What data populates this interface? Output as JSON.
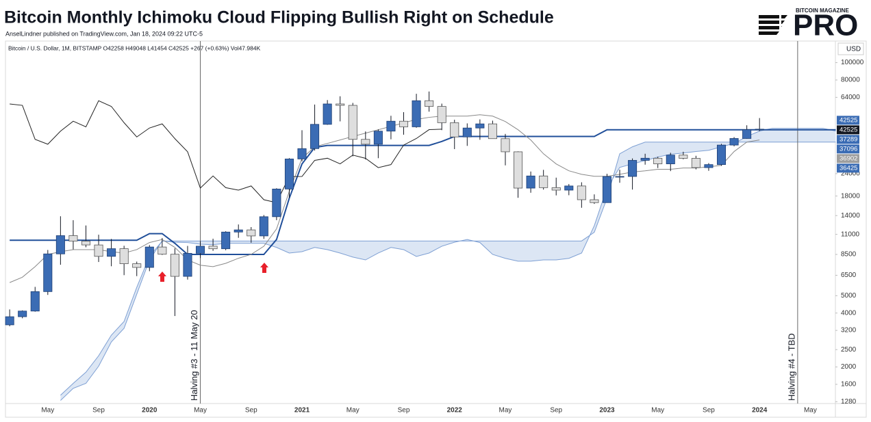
{
  "chart_data": {
    "type": "candlestick",
    "title": "Bitcoin Monthly Ichimoku Cloud Flipping Bullish Right on Schedule",
    "subtitle": "AnselLindner published on TradingView.com, Jan 18, 2024 09:22 UTC-5",
    "symbol_line": "Bitcoin / U.S. Dollar, 1M, BITSTAMP  O42258 H49048 L41454 C42525 +267 (+0.63%) Vol47.984K",
    "currency": "USD",
    "brand": {
      "top": "BITCOIN MAGAZINE",
      "main": "PRO"
    },
    "categories": [
      null,
      null,
      null,
      "May",
      null,
      null,
      null,
      "Sep",
      null,
      null,
      null,
      "2020",
      null,
      null,
      null,
      "May",
      null,
      null,
      null,
      "Sep",
      null,
      null,
      null,
      "2021",
      null,
      null,
      null,
      "May",
      null,
      null,
      null,
      "Sep",
      null,
      null,
      null,
      "2022",
      null,
      null,
      null,
      "May",
      null,
      null,
      null,
      "Sep",
      null,
      null,
      null,
      "2023",
      null,
      null,
      null,
      "May",
      null,
      null,
      null,
      "Sep",
      null,
      null,
      null,
      "2024",
      null,
      null,
      null,
      "May",
      null,
      null
    ],
    "open": [
      3437,
      3816,
      4103,
      5270,
      8555,
      10820,
      10085,
      9600,
      8290,
      9150,
      7540,
      7190,
      9350,
      8520,
      6410,
      8620,
      9450,
      9140,
      11330,
      11650,
      10780,
      13800,
      19700,
      28990,
      33110,
      45240,
      58800,
      57750,
      37300,
      35040,
      41460,
      47100,
      43820,
      61300,
      56950,
      46210,
      38470,
      43160,
      45510,
      37630,
      31790,
      19930,
      23300,
      20050,
      19420,
      20490,
      17170,
      16540,
      23130,
      23150,
      28470,
      29270,
      27220,
      30470,
      29230,
      25940,
      26970,
      34660,
      37720,
      42258,
      null,
      null,
      null,
      null,
      null,
      null
    ],
    "high": [
      4190,
      4140,
      5600,
      9000,
      13880,
      13200,
      12330,
      10950,
      10370,
      9500,
      7750,
      9580,
      10500,
      9190,
      9480,
      10070,
      10400,
      11450,
      12490,
      12080,
      14100,
      19900,
      29300,
      41950,
      58350,
      61800,
      64900,
      59600,
      41300,
      42400,
      50500,
      52920,
      67000,
      69000,
      59050,
      47990,
      45800,
      48200,
      47440,
      40000,
      31980,
      24670,
      25200,
      22800,
      20990,
      21480,
      18390,
      23960,
      25250,
      29190,
      31000,
      29830,
      31390,
      31800,
      30200,
      27480,
      35200,
      38400,
      44700,
      49048,
      null,
      null,
      null,
      null,
      null,
      null
    ],
    "low": [
      3375,
      3740,
      4070,
      5050,
      7440,
      9070,
      9320,
      7710,
      7300,
      6510,
      6430,
      6850,
      8440,
      3850,
      6150,
      8110,
      8900,
      8970,
      10520,
      9880,
      10380,
      13200,
      17600,
      28130,
      32300,
      44950,
      47000,
      30000,
      28800,
      29280,
      37330,
      39600,
      43300,
      53250,
      42000,
      32900,
      34300,
      37100,
      37590,
      26700,
      17600,
      18780,
      19550,
      18150,
      18190,
      15480,
      16270,
      16500,
      21350,
      19560,
      26940,
      25800,
      24800,
      28860,
      25350,
      24900,
      26550,
      34100,
      37600,
      41454,
      null,
      null,
      null,
      null,
      null,
      null
    ],
    "close": [
      3816,
      4103,
      5270,
      8555,
      10820,
      10085,
      9600,
      8290,
      9150,
      7540,
      7190,
      9350,
      8520,
      6410,
      8620,
      9450,
      9140,
      11330,
      11650,
      10780,
      13800,
      19700,
      28990,
      33110,
      45240,
      58800,
      57750,
      37300,
      35040,
      41460,
      47100,
      43820,
      61300,
      56950,
      46210,
      38470,
      43160,
      45510,
      37630,
      31790,
      19930,
      23300,
      20050,
      19420,
      20490,
      17170,
      16540,
      23130,
      23150,
      28470,
      29270,
      27220,
      30470,
      29230,
      25940,
      26970,
      34660,
      37720,
      42258,
      42525,
      null,
      null,
      null,
      null,
      null,
      null
    ],
    "up_color": "#3b6cb4",
    "down_color": "#dedede",
    "cloud": {
      "color": "#dce6f4",
      "line_color": "#7d9fd3",
      "span_a": [
        null,
        null,
        null,
        null,
        1390,
        1620,
        1870,
        2310,
        3010,
        3590,
        5570,
        8280,
        10100,
        9940,
        9900,
        9700,
        9630,
        9800,
        9800,
        9800,
        9800,
        9300,
        8650,
        8800,
        9300,
        9040,
        8650,
        8210,
        7920,
        8650,
        9300,
        9040,
        8280,
        8650,
        9440,
        9940,
        10300,
        9900,
        8500,
        8080,
        7790,
        7790,
        7920,
        7920,
        8080,
        8650,
        12300,
        20000,
        26000,
        27200,
        28400,
        29700,
        30800,
        31300,
        31900,
        32400,
        33900,
        35400,
        38700,
        41500,
        43000,
        43000,
        43000,
        43000,
        43000,
        41500
      ],
      "span_b": [
        null,
        null,
        null,
        null,
        1300,
        1520,
        1620,
        2020,
        2760,
        3290,
        5100,
        7920,
        10100,
        10100,
        10100,
        10100,
        10100,
        10100,
        10100,
        10100,
        10100,
        10100,
        10100,
        10100,
        10100,
        10100,
        10100,
        10100,
        10100,
        10100,
        10100,
        10100,
        10100,
        10100,
        10100,
        10100,
        10100,
        10100,
        10100,
        10100,
        10100,
        10100,
        10100,
        10100,
        10100,
        10100,
        11300,
        17500,
        31000,
        33900,
        36000,
        36000,
        36000,
        36000,
        36000,
        36000,
        36000,
        36000,
        36000,
        36000,
        36000,
        36000,
        36000,
        36000,
        36000,
        36000
      ]
    },
    "lines": [
      {
        "color": "#1f4e99",
        "width": 2,
        "values": [
          10200,
          10200,
          10200,
          10200,
          10200,
          10200,
          10200,
          10200,
          10200,
          10200,
          10200,
          11100,
          11100,
          9800,
          8500,
          8500,
          8500,
          8500,
          8500,
          8500,
          8500,
          10300,
          17500,
          27200,
          33600,
          34500,
          34500,
          34500,
          34500,
          34500,
          34500,
          34500,
          34500,
          34500,
          36300,
          38700,
          38700,
          38700,
          38700,
          38700,
          38700,
          38700,
          38700,
          38700,
          38700,
          38700,
          38700,
          42200,
          42200,
          42200,
          42200,
          42200,
          42200,
          42200,
          42200,
          42200,
          42200,
          42200,
          42200,
          42200,
          42200,
          42200,
          42200,
          42200,
          42200,
          42200
        ]
      },
      {
        "color": "#888888",
        "width": 1,
        "values": [
          5920,
          6340,
          7260,
          8500,
          8800,
          9040,
          9040,
          9040,
          8800,
          8650,
          9040,
          9900,
          10300,
          9300,
          7920,
          7400,
          7260,
          7580,
          8090,
          8500,
          9440,
          11800,
          19100,
          29200,
          33900,
          35400,
          37000,
          38700,
          40400,
          42200,
          44100,
          46100,
          48200,
          49500,
          50300,
          50300,
          50300,
          51200,
          50300,
          46900,
          42200,
          37000,
          31000,
          27200,
          24900,
          23800,
          23200,
          23200,
          23800,
          24500,
          24900,
          25400,
          25400,
          25800,
          25800,
          26200,
          26700,
          31900,
          36000,
          37000,
          null,
          null,
          null,
          null,
          null,
          null
        ]
      },
      {
        "color": "#222222",
        "width": 1,
        "values": [
          58800,
          57750,
          37300,
          35040,
          41460,
          47100,
          43820,
          61300,
          56950,
          46210,
          38470,
          43160,
          45510,
          37630,
          31790,
          19930,
          23300,
          20050,
          19420,
          20490,
          17170,
          16540,
          23130,
          23150,
          28470,
          29270,
          27220,
          30470,
          29230,
          25940,
          26970,
          34660,
          37720,
          42258,
          42525,
          null,
          null,
          null,
          null,
          null,
          null,
          null,
          null,
          null,
          null,
          null,
          null,
          null,
          null,
          null,
          null,
          null,
          null,
          null,
          null,
          null,
          null,
          null,
          null,
          null,
          null,
          null,
          null,
          null,
          null,
          null
        ]
      }
    ],
    "log": true,
    "ylim": [
      1250,
      132000
    ],
    "yticks": [
      100000,
      80000,
      64000,
      24000,
      18000,
      14000,
      11000,
      8500,
      6500,
      5000,
      4000,
      3200,
      2500,
      2000,
      1600,
      1280
    ],
    "price_labels": [
      {
        "value": 42525,
        "color": "#3b6cb4"
      },
      {
        "value": 42525,
        "color": "#131722"
      },
      {
        "value": 37289,
        "color": "#3b6cb4"
      },
      {
        "value": 37096,
        "color": "#3b6cb4"
      },
      {
        "value": 36902,
        "color": "#9e9e9e"
      },
      {
        "value": 36425,
        "color": "#3b6cb4"
      }
    ],
    "events": [
      {
        "x": 15,
        "label": "Halving #3 - 11 May 20"
      },
      {
        "x": 62,
        "label": "Halving #4 - TBD"
      }
    ]
  }
}
